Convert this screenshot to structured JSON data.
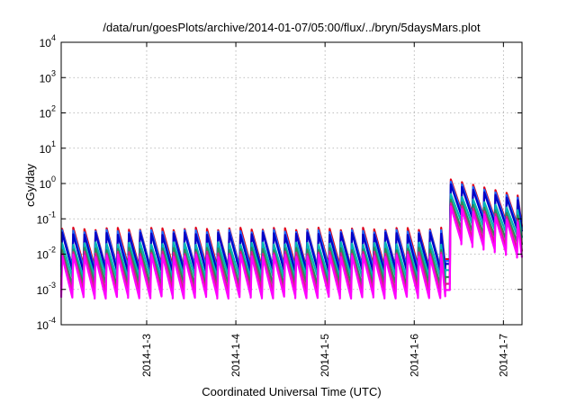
{
  "chart_data": {
    "type": "line",
    "title": "/data/run/goesPlots/archive/2014-01-07/05:00/flux/../bryn/5daysMars.plot",
    "xlabel": "Coordinated Universal Time (UTC)",
    "ylabel": "cGy/day",
    "yscale": "log",
    "ylim": [
      0.0001,
      10000
    ],
    "yticks": [
      {
        "base": "10",
        "exp": "-4"
      },
      {
        "base": "10",
        "exp": "-3"
      },
      {
        "base": "10",
        "exp": "-2"
      },
      {
        "base": "10",
        "exp": "-1"
      },
      {
        "base": "10",
        "exp": "0"
      },
      {
        "base": "10",
        "exp": "1"
      },
      {
        "base": "10",
        "exp": "2"
      },
      {
        "base": "10",
        "exp": "3"
      },
      {
        "base": "10",
        "exp": "4"
      }
    ],
    "xlim": [
      "2014-01-02 01:00",
      "2014-01-07 05:00"
    ],
    "xticks": [
      "2014-1-3",
      "2014-1-4",
      "2014-1-5",
      "2014-1-6",
      "2014-1-7"
    ],
    "grid": true,
    "legend": "none",
    "pattern": {
      "period_hours": 3,
      "event_start": "2014-01-06 09:40",
      "quiet_day_mean_scale": 1.0,
      "event_peak_scale": 25.0,
      "event_decay_per_day": 0.25
    },
    "series": [
      {
        "color": "#e0001a",
        "peak": 0.052,
        "trough": 0.0045
      },
      {
        "color": "#1a6aff",
        "peak": 0.045,
        "trough": 0.004
      },
      {
        "color": "#0000c8",
        "peak": 0.038,
        "trough": 0.0033
      },
      {
        "color": "#00b7b7",
        "peak": 0.02,
        "trough": 0.0022
      },
      {
        "color": "#2e8b57",
        "peak": 0.014,
        "trough": 0.0014
      },
      {
        "color": "#d81b8c",
        "peak": 0.011,
        "trough": 0.0009
      },
      {
        "color": "#ff00ff",
        "peak": 0.009,
        "trough": 0.0006
      }
    ]
  }
}
